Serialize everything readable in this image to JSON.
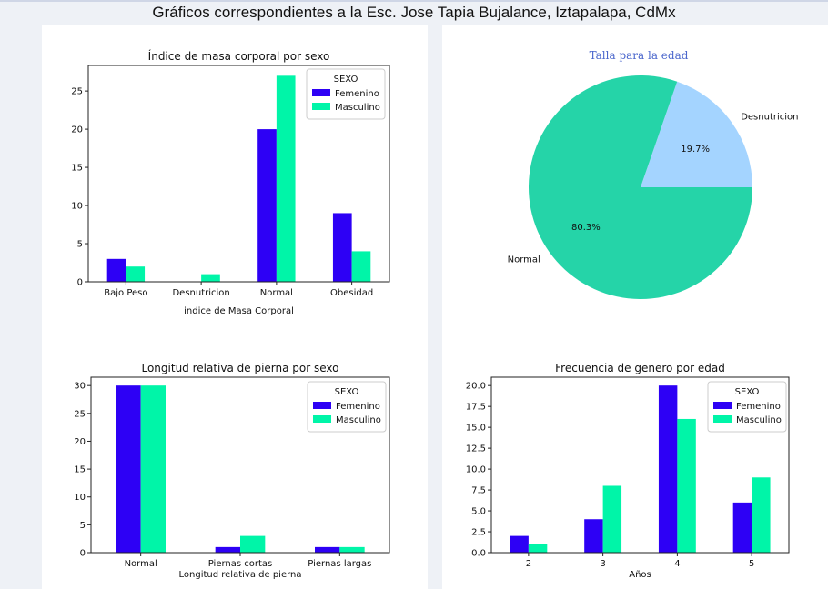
{
  "page": {
    "title": "Gráficos correspondientes a la Esc. Jose Tapia Bujalance, Iztapalapa, CdMx"
  },
  "colors": {
    "femenino": "#2d00f5",
    "masculino": "#00f5a8",
    "pie_normal": "#25d4a8",
    "pie_desnutricion": "#a4d4ff",
    "pie_title": "#4a66cc"
  },
  "chart_data": [
    {
      "id": "imc",
      "type": "bar",
      "title": "Índice de masa corporal por sexo",
      "xlabel": "indice de Masa Corporal",
      "ylabel": "",
      "categories": [
        "Bajo Peso",
        "Desnutricion",
        "Normal",
        "Obesidad"
      ],
      "series": [
        {
          "name": "Femenino",
          "values": [
            3,
            0,
            20,
            9
          ]
        },
        {
          "name": "Masculino",
          "values": [
            2,
            1,
            27,
            4
          ]
        }
      ],
      "ylim": [
        0,
        28.35
      ],
      "yticks": [
        0,
        5,
        10,
        15,
        20,
        25
      ],
      "ytick_labels": [
        "0",
        "5",
        "10",
        "15",
        "20",
        "25"
      ],
      "legend": {
        "title": "SEXO",
        "placement": "top-right"
      }
    },
    {
      "id": "talla",
      "type": "pie",
      "title": "Talla para la edad",
      "slices": [
        {
          "label": "Desnutricion",
          "value": 19.7,
          "pct_label": "19.7%"
        },
        {
          "label": "Normal",
          "value": 80.3,
          "pct_label": "80.3%"
        }
      ]
    },
    {
      "id": "pierna",
      "type": "bar",
      "title": "Longitud relativa de pierna por sexo",
      "xlabel": "Longitud relativa de pierna",
      "ylabel": "",
      "categories": [
        "Normal",
        "Piernas cortas",
        "Piernas largas"
      ],
      "series": [
        {
          "name": "Femenino",
          "values": [
            30,
            1,
            1
          ]
        },
        {
          "name": "Masculino",
          "values": [
            30,
            3,
            1
          ]
        }
      ],
      "ylim": [
        0,
        31.5
      ],
      "yticks": [
        0,
        5,
        10,
        15,
        20,
        25,
        30
      ],
      "ytick_labels": [
        "0",
        "5",
        "10",
        "15",
        "20",
        "25",
        "30"
      ],
      "legend": {
        "title": "SEXO",
        "placement": "top-right"
      }
    },
    {
      "id": "edad",
      "type": "bar",
      "title": "Frecuencia de genero por edad",
      "xlabel": "Años",
      "ylabel": "",
      "categories": [
        "2",
        "3",
        "4",
        "5"
      ],
      "series": [
        {
          "name": "Femenino",
          "values": [
            2,
            4,
            20,
            6
          ]
        },
        {
          "name": "Masculino",
          "values": [
            1,
            8,
            16,
            9
          ]
        }
      ],
      "ylim": [
        0,
        21
      ],
      "yticks": [
        0,
        2.5,
        5,
        7.5,
        10,
        12.5,
        15,
        17.5,
        20
      ],
      "ytick_labels": [
        "0.0",
        "2.5",
        "5.0",
        "7.5",
        "10.0",
        "12.5",
        "15.0",
        "17.5",
        "20.0"
      ],
      "legend": {
        "title": "SEXO",
        "placement": "top-right"
      }
    }
  ]
}
